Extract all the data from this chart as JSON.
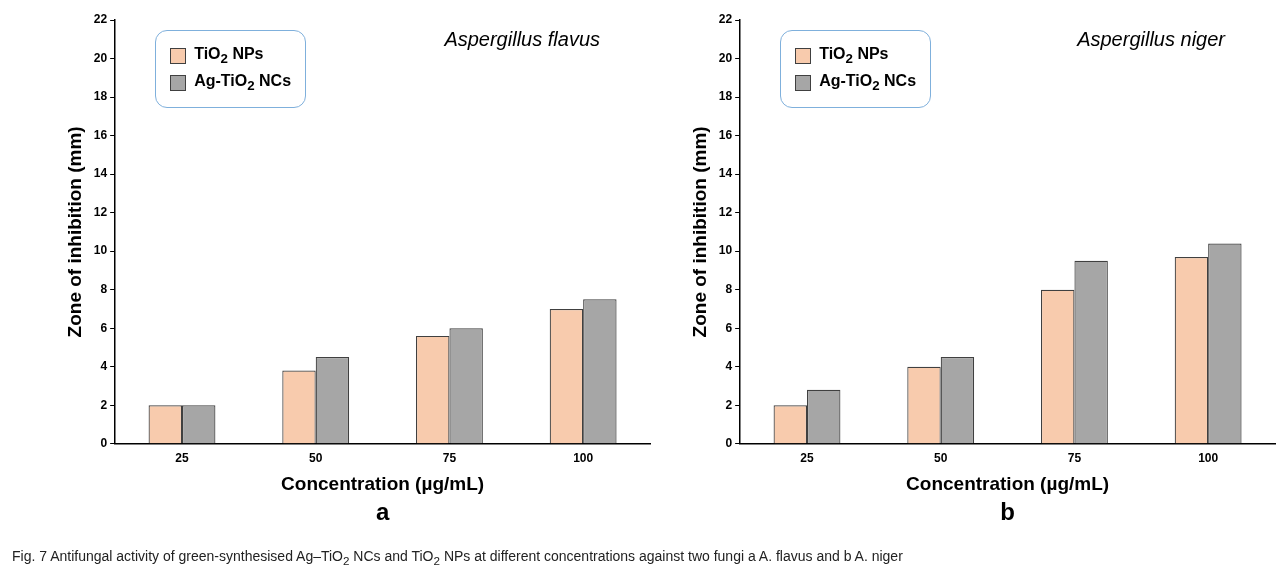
{
  "chart_data": [
    {
      "type": "bar",
      "title": "Aspergillus flavus",
      "xlabel": "Concentration (µg/mL)",
      "ylabel": "Zone of inhibition (mm)",
      "categories": [
        "25",
        "50",
        "75",
        "100"
      ],
      "series": [
        {
          "name": "TiO$_{2}$ NPs",
          "color": "#f8cbad",
          "values": [
            2,
            3.8,
            5.6,
            7
          ]
        },
        {
          "name": "Ag-TiO$_{2}$ NCs",
          "color": "#a6a6a6",
          "values": [
            2,
            4.5,
            6,
            7.5
          ]
        }
      ],
      "ylim": [
        0,
        22
      ],
      "yticks": [
        0,
        2,
        4,
        6,
        8,
        10,
        12,
        14,
        16,
        18,
        20,
        22
      ],
      "grid": false,
      "legend": "top left",
      "annotations": [
        "a",
        "Fig. 7  Antifungal activity of green-synthesised Ag–TiO$_{2}$ NCs and TiO$_{2}$ NPs at different concentrations against two fungi a A. flavus and b A. niger"
      ]
    },
    {
      "type": "bar",
      "title": "Aspergillus niger",
      "xlabel": "Concentration (µg/mL)",
      "ylabel": "Zone of inhibition (mm)",
      "categories": [
        "25",
        "50",
        "75",
        "100"
      ],
      "series": [
        {
          "name": "TiO$_{2}$ NPs",
          "color": "#f8cbad",
          "values": [
            2,
            4,
            8,
            9.7
          ]
        },
        {
          "name": "Ag-TiO$_{2}$ NCs",
          "color": "#a6a6a6",
          "values": [
            2.8,
            4.5,
            9.5,
            10.4
          ]
        }
      ],
      "ylim": [
        0,
        22
      ],
      "yticks": [
        0,
        2,
        4,
        6,
        8,
        10,
        12,
        14,
        16,
        18,
        20,
        22
      ],
      "grid": false,
      "legend": "top left",
      "annotations": [
        "b"
      ]
    }
  ]
}
